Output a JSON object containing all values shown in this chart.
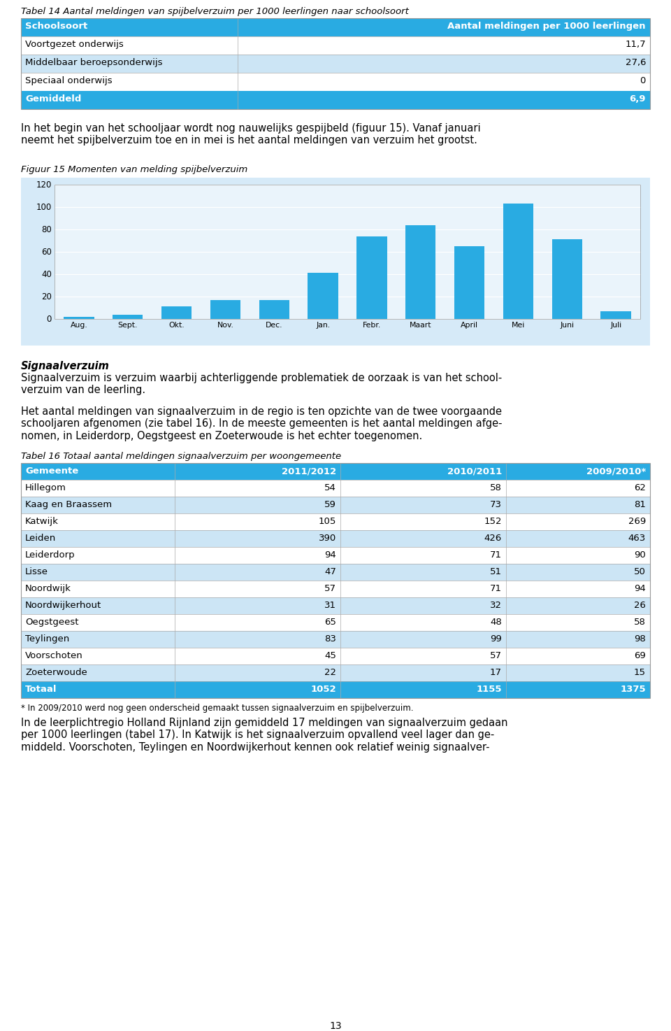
{
  "page_bg": "#ffffff",
  "title_table1": "Tabel 14 Aantal meldingen van spijbelverzuim per 1000 leerlingen naar schoolsoort",
  "table1_header": [
    "Schoolsoort",
    "Aantal meldingen per 1000 leerlingen"
  ],
  "table1_rows": [
    [
      "Voortgezet onderwijs",
      "11,7"
    ],
    [
      "Middelbaar beroepsonderwijs",
      "27,6"
    ],
    [
      "Speciaal onderwijs",
      "0"
    ],
    [
      "Gemiddeld",
      "6,9"
    ]
  ],
  "table1_row_colors": [
    "#ffffff",
    "#cce5f5",
    "#ffffff",
    "#29abe2"
  ],
  "table1_header_color": "#29abe2",
  "paragraph1": "In het begin van het schooljaar wordt nog nauwelijks gespijbeld (figuur 15). Vanaf januari\nneemt het spijbelverzuim toe en in mei is het aantal meldingen van verzuim het grootst.",
  "chart_title": "Figuur 15 Momenten van melding spijbelverzuim",
  "chart_bg": "#d6eaf8",
  "chart_inner_bg": "#eaf4fb",
  "bar_color": "#29abe2",
  "categories": [
    "Aug.",
    "Sept.",
    "Okt.",
    "Nov.",
    "Dec.",
    "Jan.",
    "Febr.",
    "Maart",
    "April",
    "Mei",
    "Juni",
    "Juli"
  ],
  "values": [
    2,
    4,
    11,
    17,
    17,
    41,
    74,
    84,
    65,
    103,
    71,
    7
  ],
  "ylim": [
    0,
    120
  ],
  "yticks": [
    0,
    20,
    40,
    60,
    80,
    100,
    120
  ],
  "section_title": "Signaalverzuim",
  "section_body": "Signaalverzuim is verzuim waarbij achterliggende problematiek de oorzaak is van het school-\nverzuim van de leerling.",
  "paragraph2": "Het aantal meldingen van signaalverzuim in de regio is ten opzichte van de twee voorgaande\nschooljaren afgenomen (zie tabel 16). In de meeste gemeenten is het aantal meldingen afge-\nnomen, in Leiderdorp, Oegstgeest en Zoeterwoude is het echter toegenomen.",
  "title_table2": "Tabel 16 Totaal aantal meldingen signaalverzuim per woongemeente",
  "table2_header": [
    "Gemeente",
    "2011/2012",
    "2010/2011",
    "2009/2010*"
  ],
  "table2_rows": [
    [
      "Hillegom",
      "54",
      "58",
      "62"
    ],
    [
      "Kaag en Braassem",
      "59",
      "73",
      "81"
    ],
    [
      "Katwijk",
      "105",
      "152",
      "269"
    ],
    [
      "Leiden",
      "390",
      "426",
      "463"
    ],
    [
      "Leiderdorp",
      "94",
      "71",
      "90"
    ],
    [
      "Lisse",
      "47",
      "51",
      "50"
    ],
    [
      "Noordwijk",
      "57",
      "71",
      "94"
    ],
    [
      "Noordwijkerhout",
      "31",
      "32",
      "26"
    ],
    [
      "Oegstgeest",
      "65",
      "48",
      "58"
    ],
    [
      "Teylingen",
      "83",
      "99",
      "98"
    ],
    [
      "Voorschoten",
      "45",
      "57",
      "69"
    ],
    [
      "Zoeterwoude",
      "22",
      "17",
      "15"
    ],
    [
      "Totaal",
      "1052",
      "1155",
      "1375"
    ]
  ],
  "table2_row_colors": [
    "#ffffff",
    "#cce5f5",
    "#ffffff",
    "#cce5f5",
    "#ffffff",
    "#cce5f5",
    "#ffffff",
    "#cce5f5",
    "#ffffff",
    "#cce5f5",
    "#ffffff",
    "#cce5f5",
    "#29abe2"
  ],
  "table2_header_color": "#29abe2",
  "footnote": "* In 2009/2010 werd nog geen onderscheid gemaakt tussen signaalverzuim en spijbelverzuim.",
  "paragraph3": "In de leerplichtregio Holland Rijnland zijn gemiddeld 17 meldingen van signaalverzuim gedaan\nper 1000 leerlingen (tabel 17). In Katwijk is het signaalverzuim opvallend veel lager dan ge-\nmiddeld. Voorschoten, Teylingen en Noordwijkerhout kennen ook relatief weinig signaalver-",
  "page_number": "13"
}
